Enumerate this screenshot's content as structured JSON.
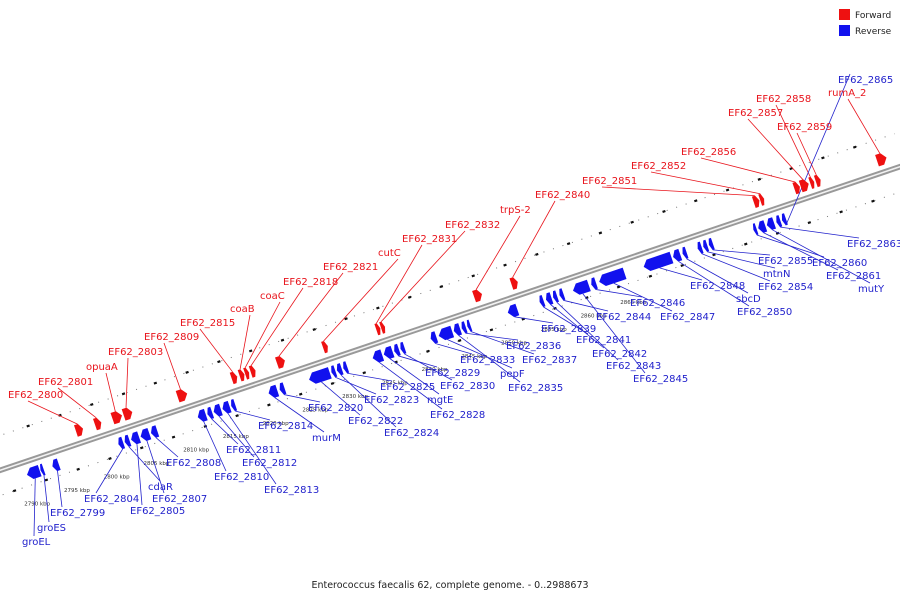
{
  "title": "Enterococcus faecalis 62, complete genome. - 0..2988673",
  "legend": [
    {
      "label": "Forward",
      "color": "#ee1111"
    },
    {
      "label": "Reverse",
      "color": "#1111ee"
    }
  ],
  "scale_unit": "kbp",
  "kbp_ticks": [
    2790,
    2795,
    2800,
    2805,
    2810,
    2815,
    2820,
    2825,
    2830,
    2835,
    2840,
    2845,
    2850,
    2855,
    2860,
    2865
  ],
  "forward_genes": [
    {
      "name": "EF62_2800",
      "pos": 2797.2,
      "len": 0.9
    },
    {
      "name": "EF62_2801",
      "pos": 2799.6,
      "len": 0.8
    },
    {
      "name": "opuaA",
      "pos": 2801.8,
      "len": 1.2
    },
    {
      "name": "EF62_2803",
      "pos": 2803.2,
      "len": 1.1
    },
    {
      "name": "EF62_2809",
      "pos": 2810.0,
      "len": 1.2
    },
    {
      "name": "EF62_2815",
      "pos": 2816.8,
      "len": 0.7
    },
    {
      "name": "coaB",
      "pos": 2817.8,
      "len": 0.6
    },
    {
      "name": "coaC",
      "pos": 2818.5,
      "len": 0.5
    },
    {
      "name": "EF62_2818",
      "pos": 2819.2,
      "len": 0.6
    },
    {
      "name": "EF62_2821",
      "pos": 2822.5,
      "len": 1.0
    },
    {
      "name": "cutC",
      "pos": 2828.3,
      "len": 0.6
    },
    {
      "name": "EF62_2831",
      "pos": 2835.0,
      "len": 0.5
    },
    {
      "name": "EF62_2832",
      "pos": 2835.6,
      "len": 0.5
    },
    {
      "name": "trpS-2",
      "pos": 2847.3,
      "len": 1.0
    },
    {
      "name": "EF62_2840",
      "pos": 2852.0,
      "len": 0.8
    },
    {
      "name": "EF62_2851",
      "pos": 2882.5,
      "len": 0.7
    },
    {
      "name": "EF62_2852",
      "pos": 2883.3,
      "len": 0.5
    },
    {
      "name": "EF62_2856",
      "pos": 2887.6,
      "len": 0.7
    },
    {
      "name": "EF62_2857",
      "pos": 2888.4,
      "len": 1.0
    },
    {
      "name": "EF62_2858",
      "pos": 2889.6,
      "len": 0.5
    },
    {
      "name": "EF62_2859",
      "pos": 2890.3,
      "len": 0.6
    },
    {
      "name": "rumA_2",
      "pos": 2898.0,
      "len": 1.2
    }
  ],
  "reverse_genes": [
    {
      "name": "groEL",
      "pos": 2790.0,
      "len": 1.6
    },
    {
      "name": "groES",
      "pos": 2791.7,
      "len": 0.4
    },
    {
      "name": "EF62_2799",
      "pos": 2793.2,
      "len": 0.8
    },
    {
      "name": "EF62_2804",
      "pos": 2801.5,
      "len": 0.6
    },
    {
      "name": "cdaR",
      "pos": 2802.3,
      "len": 0.6
    },
    {
      "name": "EF62_2805",
      "pos": 2803.1,
      "len": 1.0
    },
    {
      "name": "EF62_2807",
      "pos": 2804.3,
      "len": 1.1
    },
    {
      "name": "EF62_2808",
      "pos": 2805.6,
      "len": 0.8
    },
    {
      "name": "EF62_2810",
      "pos": 2811.5,
      "len": 1.0
    },
    {
      "name": "EF62_2811",
      "pos": 2812.7,
      "len": 0.6
    },
    {
      "name": "EF62_2812",
      "pos": 2813.5,
      "len": 0.9
    },
    {
      "name": "EF62_2813",
      "pos": 2814.6,
      "len": 0.9
    },
    {
      "name": "EF62_2814",
      "pos": 2815.7,
      "len": 0.5
    },
    {
      "name": "murM",
      "pos": 2820.4,
      "len": 1.1
    },
    {
      "name": "EF62_2820",
      "pos": 2821.8,
      "len": 0.6
    },
    {
      "name": "EF62_2822",
      "pos": 2825.5,
      "len": 2.6
    },
    {
      "name": "EF62_2823",
      "pos": 2828.3,
      "len": 0.5
    },
    {
      "name": "EF62_2824",
      "pos": 2829.0,
      "len": 0.6
    },
    {
      "name": "EF62_2825",
      "pos": 2829.8,
      "len": 0.5
    },
    {
      "name": "EF62_2828",
      "pos": 2833.5,
      "len": 1.2
    },
    {
      "name": "mgtE",
      "pos": 2834.9,
      "len": 1.1
    },
    {
      "name": "EF62_2829",
      "pos": 2836.2,
      "len": 0.6
    },
    {
      "name": "EF62_2830",
      "pos": 2837.0,
      "len": 0.5
    },
    {
      "name": "EF62_2833",
      "pos": 2840.8,
      "len": 0.7
    },
    {
      "name": "pepF",
      "pos": 2841.8,
      "len": 1.7
    },
    {
      "name": "EF62_2835",
      "pos": 2843.7,
      "len": 0.8
    },
    {
      "name": "EF62_2836",
      "pos": 2844.7,
      "len": 0.5
    },
    {
      "name": "EF62_2837",
      "pos": 2845.4,
      "len": 0.4
    },
    {
      "name": "EF62_2839",
      "pos": 2850.5,
      "len": 1.2
    },
    {
      "name": "EF62_2841",
      "pos": 2854.5,
      "len": 0.5
    },
    {
      "name": "EF62_2842",
      "pos": 2855.3,
      "len": 0.7
    },
    {
      "name": "EF62_2843",
      "pos": 2856.2,
      "len": 0.5
    },
    {
      "name": "EF62_2844",
      "pos": 2857.0,
      "len": 0.5
    },
    {
      "name": "EF62_2845",
      "pos": 2858.7,
      "len": 2.0
    },
    {
      "name": "EF62_2846",
      "pos": 2861.0,
      "len": 0.6
    },
    {
      "name": "EF62_2847",
      "pos": 2862.0,
      "len": 3.2
    },
    {
      "name": "EF62_2848",
      "pos": 2867.6,
      "len": 3.5
    },
    {
      "name": "EF62_2850",
      "pos": 2871.3,
      "len": 0.9
    },
    {
      "name": "sbcD",
      "pos": 2872.5,
      "len": 0.5
    },
    {
      "name": "EF62_2854",
      "pos": 2874.4,
      "len": 0.5
    },
    {
      "name": "mtnN",
      "pos": 2875.1,
      "len": 0.5
    },
    {
      "name": "EF62_2855",
      "pos": 2875.8,
      "len": 0.5
    },
    {
      "name": "EF62_2860",
      "pos": 2881.4,
      "len": 0.4
    },
    {
      "name": "EF62_2861",
      "pos": 2882.0,
      "len": 0.9
    },
    {
      "name": "mutY",
      "pos": 2883.1,
      "len": 0.9
    },
    {
      "name": "EF62_2863",
      "pos": 2884.3,
      "len": 0.5
    },
    {
      "name": "EF62_2865",
      "pos": 2885.0,
      "len": 0.5
    }
  ]
}
